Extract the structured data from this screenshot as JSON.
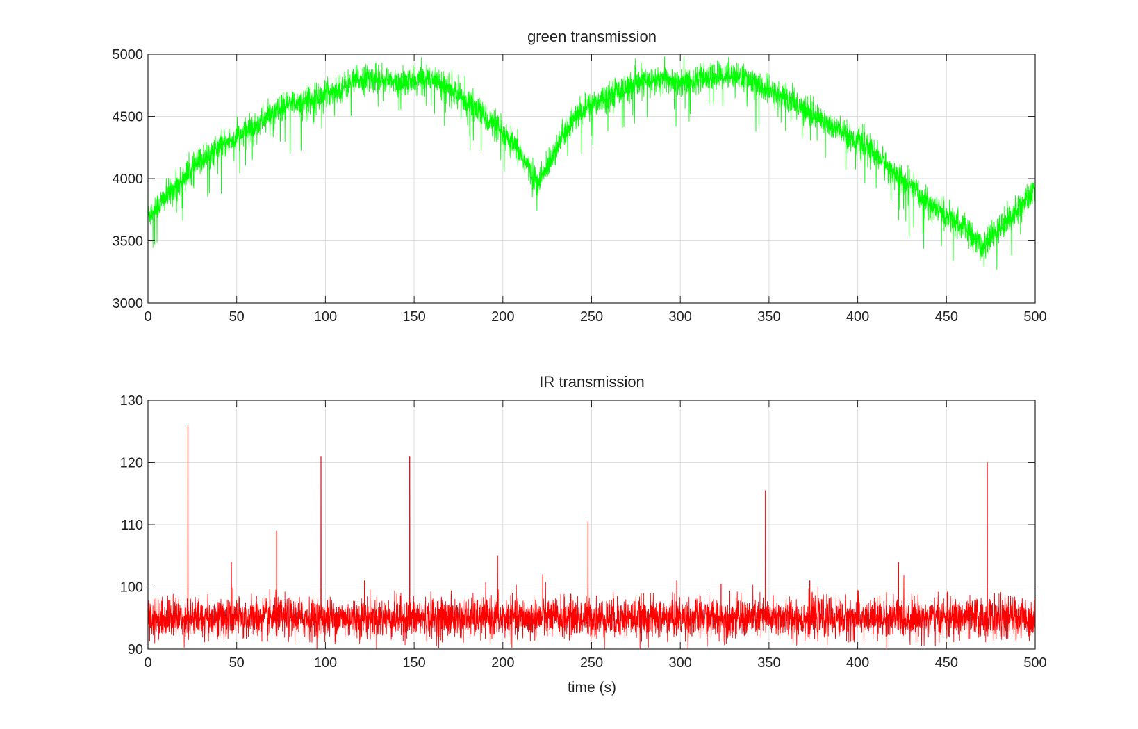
{
  "chart_data": [
    {
      "type": "line",
      "title": "green transmission",
      "xlabel": "",
      "ylabel": "",
      "xlim": [
        0,
        500
      ],
      "ylim": [
        3000,
        5000
      ],
      "xticks": [
        "0",
        "50",
        "100",
        "150",
        "200",
        "250",
        "300",
        "350",
        "400",
        "450",
        "500"
      ],
      "yticks": [
        "3000",
        "3500",
        "4000",
        "4500",
        "5000"
      ],
      "grid": true,
      "color": "#00ff00",
      "series": [
        {
          "name": "",
          "x": [
            0,
            10,
            20,
            30,
            40,
            50,
            60,
            70,
            80,
            90,
            100,
            110,
            120,
            130,
            140,
            150,
            160,
            170,
            180,
            190,
            200,
            210,
            220,
            230,
            240,
            250,
            260,
            270,
            280,
            290,
            300,
            310,
            320,
            330,
            340,
            350,
            360,
            370,
            380,
            390,
            400,
            410,
            420,
            430,
            440,
            450,
            460,
            470,
            480,
            490,
            500
          ],
          "y": [
            3700,
            3850,
            4000,
            4150,
            4250,
            4330,
            4420,
            4520,
            4600,
            4630,
            4680,
            4740,
            4800,
            4810,
            4760,
            4780,
            4820,
            4720,
            4620,
            4500,
            4350,
            4200,
            3950,
            4250,
            4480,
            4600,
            4680,
            4730,
            4780,
            4800,
            4780,
            4790,
            4820,
            4840,
            4780,
            4700,
            4640,
            4560,
            4470,
            4380,
            4300,
            4200,
            4050,
            3930,
            3800,
            3700,
            3600,
            3450,
            3600,
            3750,
            3900
          ]
        }
      ]
    },
    {
      "type": "line",
      "title": "IR transmission",
      "xlabel": "time (s)",
      "ylabel": "",
      "xlim": [
        0,
        500
      ],
      "ylim": [
        90,
        130
      ],
      "xticks": [
        "0",
        "50",
        "100",
        "150",
        "200",
        "250",
        "300",
        "350",
        "400",
        "450",
        "500"
      ],
      "yticks": [
        "90",
        "100",
        "110",
        "120",
        "130"
      ],
      "grid": true,
      "color": "#ff0000",
      "baseline": 95,
      "series": [
        {
          "name": "",
          "x": [
            22.5,
            47,
            72.5,
            97.5,
            122,
            147.5,
            197,
            222.5,
            248,
            298,
            323,
            348,
            373,
            423,
            473
          ],
          "y": [
            126,
            104,
            109,
            121,
            101,
            121,
            105,
            102,
            110.5,
            101,
            100.5,
            115.5,
            101,
            104,
            120
          ]
        }
      ]
    }
  ]
}
